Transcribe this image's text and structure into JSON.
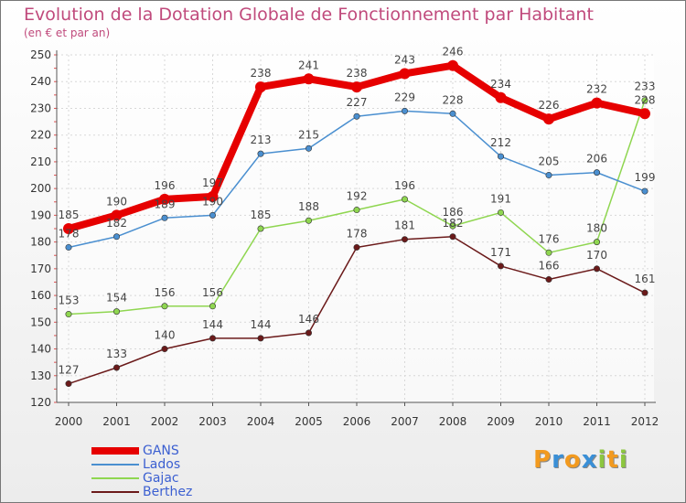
{
  "header": {
    "title": "Evolution de la Dotation Globale de Fonctionnement par Habitant",
    "subtitle": "(en € et par an)"
  },
  "logo": {
    "letters": [
      "P",
      "r",
      "o",
      "x",
      "i",
      "t",
      "i"
    ],
    "colors": [
      "#f29a1f",
      "#3a8fd6",
      "#f29a1f",
      "#3a8fd6",
      "#8cc63f",
      "#f29a1f",
      "#8cc63f"
    ]
  },
  "chart_data": {
    "type": "line",
    "x": [
      "2000",
      "2001",
      "2002",
      "2003",
      "2004",
      "2005",
      "2006",
      "2007",
      "2008",
      "2009",
      "2010",
      "2011",
      "2012"
    ],
    "ylim": [
      120,
      250
    ],
    "yticks": [
      120,
      130,
      140,
      150,
      160,
      170,
      180,
      190,
      200,
      210,
      220,
      230,
      240,
      250
    ],
    "xlabel": "",
    "ylabel": "",
    "grid": true,
    "legend_position": "bottom-left",
    "series": [
      {
        "name": "GANS",
        "color": "#e60000",
        "values": [
          185,
          190,
          196,
          197,
          238,
          241,
          238,
          243,
          246,
          234,
          226,
          232,
          228
        ],
        "labels": [
          "185",
          "190",
          "196",
          "197",
          "238",
          "241",
          "238",
          "243",
          "246",
          "234",
          "226",
          "232",
          "228"
        ]
      },
      {
        "name": "Lados",
        "color": "#4a8fd0",
        "values": [
          178,
          182,
          189,
          190,
          213,
          215,
          227,
          229,
          228,
          212,
          205,
          206,
          199
        ],
        "labels": [
          "178",
          "182",
          "189",
          "190",
          "213",
          "215",
          "227",
          "229",
          "228",
          "212",
          "205",
          "206",
          "199"
        ]
      },
      {
        "name": "Gajac",
        "color": "#8fd650",
        "values": [
          153,
          154,
          156,
          156,
          185,
          188,
          192,
          196,
          186,
          191,
          176,
          180,
          233
        ],
        "labels": [
          "153",
          "154",
          "156",
          "156",
          "185",
          "188",
          "192",
          "196",
          "186",
          "191",
          "176",
          "180",
          "233"
        ]
      },
      {
        "name": "Berthez",
        "color": "#6b1a1a",
        "values": [
          127,
          133,
          140,
          144,
          144,
          146,
          178,
          181,
          182,
          171,
          166,
          170,
          161
        ],
        "labels": [
          "127",
          "133",
          "140",
          "144",
          "144",
          "146",
          "178",
          "181",
          "182",
          "171",
          "166",
          "170",
          "161"
        ]
      }
    ]
  }
}
